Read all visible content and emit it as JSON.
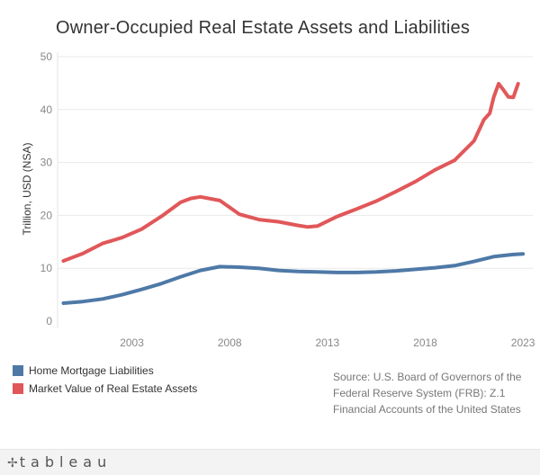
{
  "title": "Owner-Occupied Real Estate Assets and Liabilities",
  "source": "Source: U.S. Board of Governors of the Federal Reserve System (FRB): Z.1 Financial Accounts of the United States",
  "footer": {
    "logo_icon": "tableau-plus-icon",
    "brand": "tableau"
  },
  "colors": {
    "liabilities": "#4e79a7",
    "assets": "#e15759"
  },
  "chart_data": {
    "type": "line",
    "title": "Owner-Occupied Real Estate Assets and Liabilities",
    "xlabel": "",
    "ylabel": "Trillion, USD (NSA)",
    "xlim": [
      1999.7,
      2024.0
    ],
    "ylim": [
      0,
      50
    ],
    "y_ticks": [
      0,
      10,
      20,
      30,
      40,
      50
    ],
    "x_ticks": [
      2003,
      2008,
      2013,
      2018,
      2023
    ],
    "grid": "horizontal",
    "legend_position": "bottom-left",
    "series": [
      {
        "name": "Home Mortgage Liabilities",
        "color": "#4e79a7",
        "points": [
          [
            2000.0,
            3.4
          ],
          [
            2001.0,
            3.7
          ],
          [
            2002.0,
            4.2
          ],
          [
            2003.0,
            5.0
          ],
          [
            2004.0,
            6.0
          ],
          [
            2005.0,
            7.1
          ],
          [
            2006.0,
            8.4
          ],
          [
            2007.0,
            9.6
          ],
          [
            2008.0,
            10.3
          ],
          [
            2009.0,
            10.2
          ],
          [
            2010.0,
            10.0
          ],
          [
            2011.0,
            9.6
          ],
          [
            2012.0,
            9.4
          ],
          [
            2013.0,
            9.3
          ],
          [
            2014.0,
            9.2
          ],
          [
            2015.0,
            9.2
          ],
          [
            2016.0,
            9.3
          ],
          [
            2017.0,
            9.5
          ],
          [
            2018.0,
            9.8
          ],
          [
            2019.0,
            10.1
          ],
          [
            2020.0,
            10.5
          ],
          [
            2021.0,
            11.3
          ],
          [
            2022.0,
            12.2
          ],
          [
            2023.0,
            12.6
          ],
          [
            2023.5,
            12.7
          ]
        ]
      },
      {
        "name": "Market Value of Real Estate Assets",
        "color": "#e15759",
        "points": [
          [
            2000.0,
            11.4
          ],
          [
            2001.0,
            12.8
          ],
          [
            2002.0,
            14.7
          ],
          [
            2003.0,
            15.8
          ],
          [
            2004.0,
            17.4
          ],
          [
            2005.0,
            19.8
          ],
          [
            2006.0,
            22.5
          ],
          [
            2006.5,
            23.2
          ],
          [
            2007.0,
            23.5
          ],
          [
            2008.0,
            22.8
          ],
          [
            2009.0,
            20.2
          ],
          [
            2010.0,
            19.2
          ],
          [
            2011.0,
            18.8
          ],
          [
            2012.0,
            18.1
          ],
          [
            2012.5,
            17.8
          ],
          [
            2013.0,
            18.0
          ],
          [
            2014.0,
            19.8
          ],
          [
            2015.0,
            21.2
          ],
          [
            2016.0,
            22.7
          ],
          [
            2017.0,
            24.5
          ],
          [
            2018.0,
            26.4
          ],
          [
            2019.0,
            28.6
          ],
          [
            2020.0,
            30.4
          ],
          [
            2021.0,
            34.1
          ],
          [
            2021.5,
            38.1
          ],
          [
            2021.8,
            39.3
          ],
          [
            2022.0,
            42.3
          ],
          [
            2022.25,
            44.9
          ],
          [
            2022.5,
            43.7
          ],
          [
            2022.75,
            42.4
          ],
          [
            2023.0,
            42.3
          ],
          [
            2023.25,
            44.9
          ]
        ]
      }
    ]
  }
}
